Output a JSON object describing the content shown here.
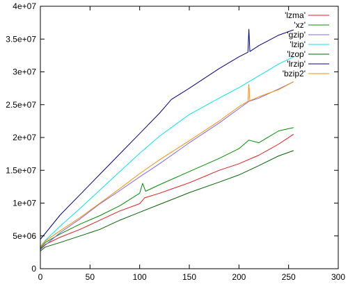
{
  "chart_data": {
    "type": "line",
    "title": "",
    "xlabel": "",
    "ylabel": "",
    "xlim": [
      0,
      300
    ],
    "ylim": [
      0,
      40000000
    ],
    "grid": false,
    "legend_position": "top-right",
    "x_ticks": [
      {
        "value": 0,
        "label": "0"
      },
      {
        "value": 50,
        "label": "50"
      },
      {
        "value": 100,
        "label": "100"
      },
      {
        "value": 150,
        "label": "150"
      },
      {
        "value": 200,
        "label": "200"
      },
      {
        "value": 250,
        "label": "250"
      },
      {
        "value": 300,
        "label": "300"
      }
    ],
    "y_ticks": [
      {
        "value": 0,
        "label": "0"
      },
      {
        "value": 5000000,
        "label": "5e+06"
      },
      {
        "value": 10000000,
        "label": "1e+07"
      },
      {
        "value": 15000000,
        "label": "1.5e+07"
      },
      {
        "value": 20000000,
        "label": "2e+07"
      },
      {
        "value": 25000000,
        "label": "2.5e+07"
      },
      {
        "value": 30000000,
        "label": "3e+07"
      },
      {
        "value": 35000000,
        "label": "3.5e+07"
      },
      {
        "value": 40000000,
        "label": "4e+07"
      }
    ],
    "series": [
      {
        "name": "'lzma'",
        "color": "#e41a1c",
        "x": [
          0,
          5,
          20,
          40,
          60,
          80,
          100,
          105,
          120,
          150,
          180,
          200,
          220,
          240,
          255
        ],
        "y": [
          3000000,
          3700000,
          4800000,
          6000000,
          7400000,
          8800000,
          9900000,
          10800000,
          11500000,
          13100000,
          15000000,
          16000000,
          17300000,
          19000000,
          20500000
        ]
      },
      {
        "name": "'xz'",
        "color": "#008b00",
        "x": [
          0,
          5,
          20,
          40,
          60,
          80,
          100,
          103,
          106,
          120,
          150,
          180,
          200,
          210,
          220,
          240,
          255
        ],
        "y": [
          3100000,
          4000000,
          5300000,
          6800000,
          8100000,
          9600000,
          11500000,
          13000000,
          11800000,
          12800000,
          14800000,
          16800000,
          18300000,
          19600000,
          19200000,
          21000000,
          21500000
        ]
      },
      {
        "name": "'gzip'",
        "color": "#7b68ee",
        "x": [
          0,
          5,
          20,
          40,
          60,
          80,
          100,
          120,
          150,
          180,
          200,
          210,
          220,
          240,
          255
        ],
        "y": [
          2900000,
          3600000,
          5500000,
          7600000,
          9900000,
          11900000,
          14000000,
          16000000,
          19200000,
          22200000,
          24400000,
          25500000,
          26000000,
          27400000,
          28500000
        ]
      },
      {
        "name": "'lzip'",
        "color": "#00e5ee",
        "x": [
          0,
          5,
          20,
          40,
          60,
          80,
          100,
          120,
          150,
          180,
          200,
          220,
          240,
          255
        ],
        "y": [
          3400000,
          4300000,
          6500000,
          9200000,
          12000000,
          14800000,
          17600000,
          20200000,
          23500000,
          26000000,
          27600000,
          29400000,
          31200000,
          32300000
        ]
      },
      {
        "name": "'lzop'",
        "color": "#006400",
        "x": [
          0,
          5,
          20,
          40,
          60,
          80,
          100,
          120,
          150,
          180,
          200,
          220,
          240,
          255
        ],
        "y": [
          2700000,
          3300000,
          4000000,
          5000000,
          6000000,
          7400000,
          8600000,
          9800000,
          11600000,
          13200000,
          14300000,
          15700000,
          17200000,
          18000000
        ]
      },
      {
        "name": "'lrzip'",
        "color": "#000080",
        "x": [
          0,
          5,
          20,
          40,
          60,
          80,
          100,
          120,
          132,
          150,
          180,
          200,
          209,
          210,
          211,
          220,
          240,
          255
        ],
        "y": [
          4500000,
          5400000,
          8200000,
          11300000,
          14400000,
          17500000,
          20600000,
          23700000,
          25800000,
          27500000,
          30500000,
          32300000,
          33000000,
          36500000,
          33100000,
          34000000,
          35600000,
          36400000
        ]
      },
      {
        "name": "'bzip2'",
        "color": "#ff8c00",
        "x": [
          0,
          5,
          20,
          40,
          60,
          80,
          100,
          120,
          150,
          180,
          200,
          209,
          210,
          211,
          220,
          240,
          255
        ],
        "y": [
          3300000,
          4200000,
          5800000,
          7800000,
          10000000,
          12200000,
          14500000,
          16600000,
          19500000,
          22500000,
          24700000,
          25500000,
          28100000,
          25600000,
          26200000,
          27300000,
          28500000
        ]
      }
    ]
  }
}
